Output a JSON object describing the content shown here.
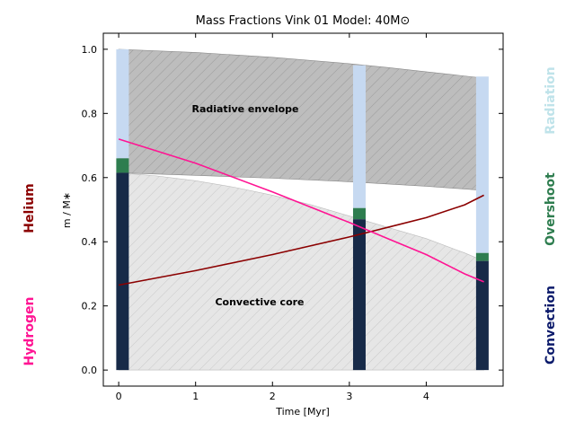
{
  "chart_data": {
    "type": "area",
    "title": "Mass Fractions Vink 01 Model: 40M⊙",
    "xlabel": "Time [Myr]",
    "ylabel": "m / M∗",
    "xlim": [
      -0.2,
      5.0
    ],
    "ylim": [
      -0.05,
      1.05
    ],
    "xticks": [
      "0",
      "1",
      "2",
      "3",
      "4"
    ],
    "xtick_values": [
      0,
      1,
      2,
      3,
      4
    ],
    "yticks": [
      "0.0",
      "0.2",
      "0.4",
      "0.6",
      "0.8",
      "1.0"
    ],
    "ytick_values": [
      0.0,
      0.2,
      0.4,
      0.6,
      0.8,
      1.0
    ],
    "annotations": [
      "Radiative envelope",
      "Convective core"
    ],
    "side_labels": {
      "left": [
        "Helium",
        "Hydrogen"
      ],
      "right": [
        "Radiation",
        "Overshoot",
        "Convection"
      ]
    },
    "colors": {
      "radiation": "#c6d9f1",
      "overshoot": "#2e7d4f",
      "convection": "#172a48",
      "helium": "#8b0000",
      "hydrogen": "#ff1493",
      "radiative_envelope": "#bdbdbd",
      "convective_core": "#e6e6e6"
    },
    "regions": {
      "total_mass": {
        "x": [
          0.0,
          1.0,
          2.0,
          3.0,
          3.5,
          4.0,
          4.75
        ],
        "values": [
          1.0,
          0.99,
          0.975,
          0.955,
          0.943,
          0.93,
          0.91
        ]
      },
      "envelope_base": {
        "x": [
          0.0,
          1.0,
          2.0,
          3.0,
          3.5,
          4.0,
          4.75
        ],
        "values": [
          0.615,
          0.607,
          0.598,
          0.587,
          0.58,
          0.573,
          0.56
        ]
      },
      "core_top": {
        "x": [
          0.0,
          0.5,
          1.0,
          1.5,
          2.0,
          2.5,
          3.0,
          3.5,
          4.0,
          4.5,
          4.75
        ],
        "values": [
          0.615,
          0.605,
          0.59,
          0.57,
          0.545,
          0.515,
          0.48,
          0.445,
          0.41,
          0.365,
          0.34
        ]
      }
    },
    "series": [
      {
        "name": "Helium",
        "x": [
          0.0,
          1.0,
          2.0,
          3.0,
          3.5,
          4.0,
          4.5,
          4.75
        ],
        "values": [
          0.265,
          0.31,
          0.36,
          0.415,
          0.445,
          0.475,
          0.515,
          0.545
        ]
      },
      {
        "name": "Hydrogen",
        "x": [
          0.0,
          1.0,
          2.0,
          3.0,
          3.5,
          4.0,
          4.5,
          4.75
        ],
        "values": [
          0.72,
          0.645,
          0.555,
          0.46,
          0.41,
          0.36,
          0.3,
          0.275
        ]
      }
    ],
    "bars": [
      {
        "x": 0.05,
        "convection": 0.615,
        "overshoot_top": 0.66,
        "radiation_top": 1.0
      },
      {
        "x": 3.13,
        "convection": 0.47,
        "overshoot_top": 0.505,
        "radiation_top": 0.95
      },
      {
        "x": 4.73,
        "convection": 0.34,
        "overshoot_top": 0.365,
        "radiation_top": 0.915
      }
    ]
  }
}
